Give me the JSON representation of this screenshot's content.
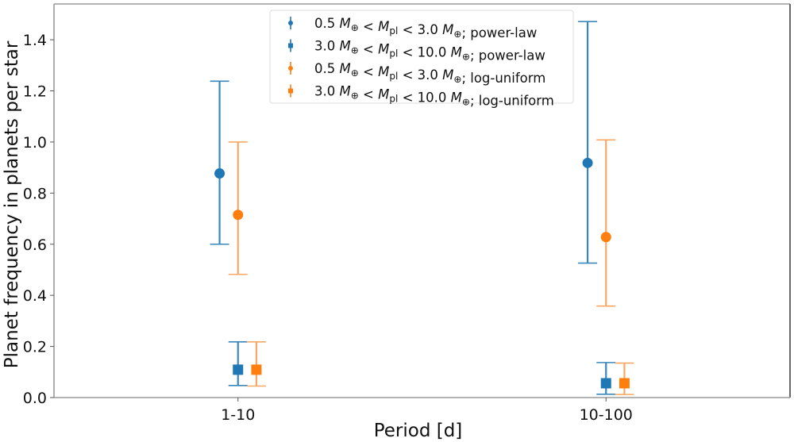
{
  "chart_data": {
    "type": "scatter",
    "subtype": "errorbar",
    "title": "",
    "xlabel": "Period [d]",
    "ylabel": "Planet frequency in planets per star",
    "categories": [
      "1-10",
      "10-100"
    ],
    "xlim": [
      -0.5,
      1.5
    ],
    "ylim": [
      0.0,
      1.54
    ],
    "yticks": [
      0.0,
      0.2,
      0.4,
      0.6,
      0.8,
      1.0,
      1.2,
      1.4
    ],
    "ytick_labels": [
      "0.0",
      "0.2",
      "0.4",
      "0.6",
      "0.8",
      "1.0",
      "1.2",
      "1.4"
    ],
    "grid": false,
    "legend_position": "upper-center",
    "series": [
      {
        "name": "0.5 M⊕ < Mpl < 3.0 M⊕ ; power-law",
        "legend_parts": {
          "low": "0.5",
          "high": "3.0",
          "model": "power-law"
        },
        "color": "#1f77b4",
        "marker": "circle",
        "x_offset": -0.05,
        "values": [
          0.877,
          0.918
        ],
        "upper": [
          1.238,
          1.471
        ],
        "lower": [
          0.6,
          0.526
        ]
      },
      {
        "name": "3.0 M⊕ < Mpl < 10.0 M⊕ ; power-law",
        "legend_parts": {
          "low": "3.0",
          "high": "10.0",
          "model": "power-law"
        },
        "color": "#1f77b4",
        "marker": "square",
        "x_offset": 0.0,
        "values": [
          0.109,
          0.056
        ],
        "upper": [
          0.218,
          0.137
        ],
        "lower": [
          0.047,
          0.013
        ]
      },
      {
        "name": "0.5 M⊕ < Mpl < 3.0 M⊕ ; log-uniform",
        "legend_parts": {
          "low": "0.5",
          "high": "3.0",
          "model": "log-uniform"
        },
        "color": "#ff7f0e",
        "marker": "circle",
        "x_offset": 0.0,
        "values": [
          0.715,
          0.628
        ],
        "upper": [
          1.0,
          1.008
        ],
        "lower": [
          0.482,
          0.358
        ]
      },
      {
        "name": "3.0 M⊕ < Mpl < 10.0 M⊕ ; log-uniform",
        "legend_parts": {
          "low": "3.0",
          "high": "10.0",
          "model": "log-uniform"
        },
        "color": "#ff7f0e",
        "marker": "square",
        "x_offset": 0.05,
        "values": [
          0.109,
          0.056
        ],
        "upper": [
          0.218,
          0.135
        ],
        "lower": [
          0.045,
          0.012
        ]
      }
    ]
  }
}
